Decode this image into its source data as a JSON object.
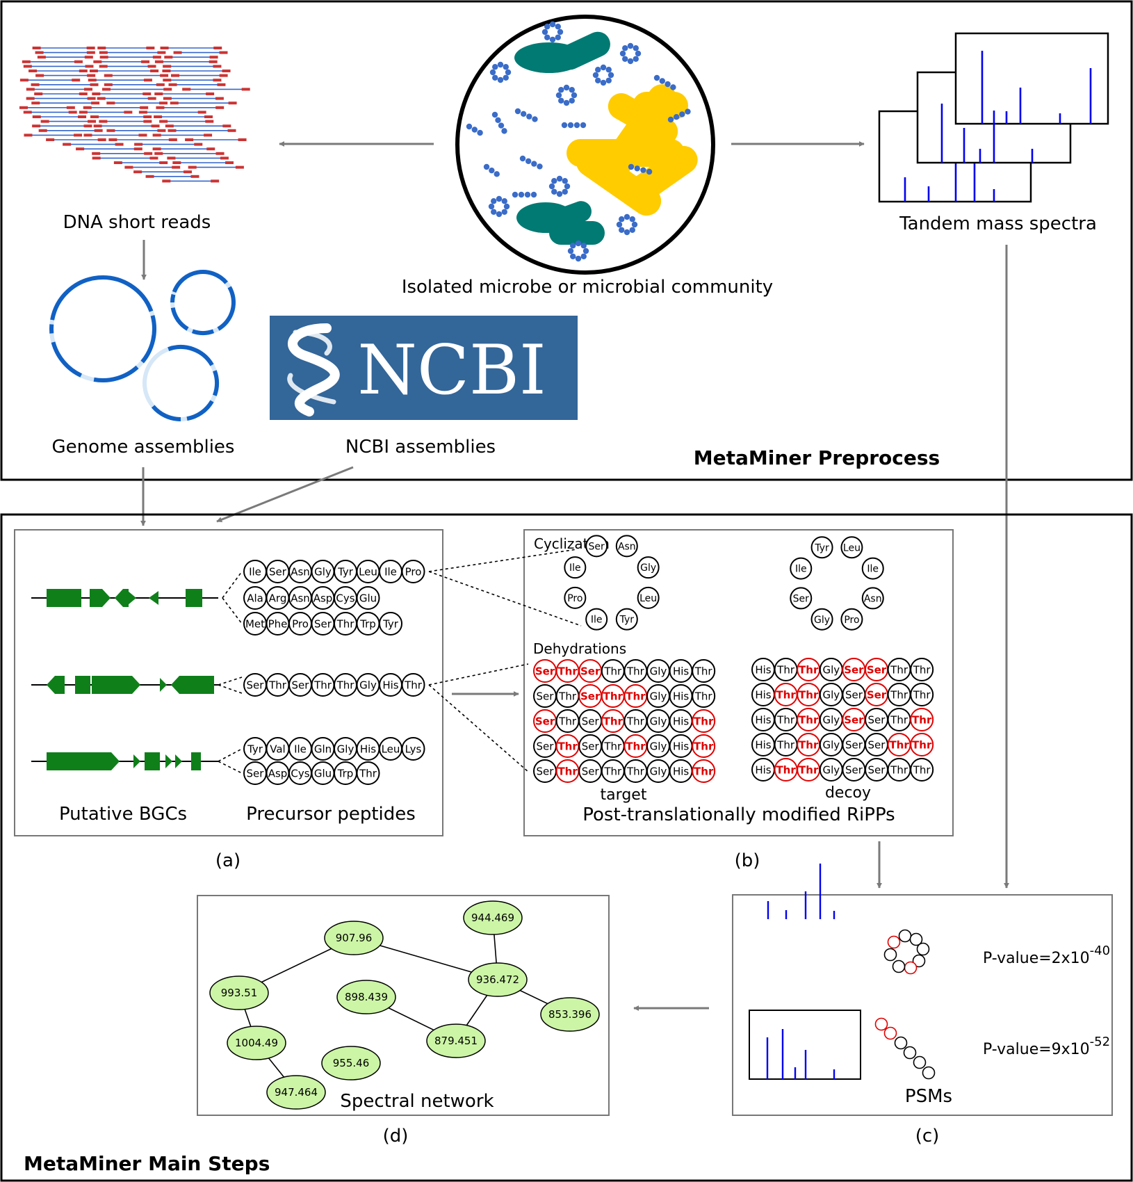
{
  "preprocess": {
    "title": "MetaMiner Preprocess",
    "dna_label": "DNA short reads",
    "microbe_label": "Isolated microbe or microbial community",
    "spectra_label": "Tandem mass spectra",
    "genome_label": "Genome assemblies",
    "ncbi_logo_text": "NCBI",
    "ncbi_label": "NCBI assemblies"
  },
  "main": {
    "title": "MetaMiner Main Steps",
    "panel_a": {
      "letter": "(a)",
      "bgc_label": "Putative BGCs",
      "peptides_label": "Precursor peptides",
      "peptides": [
        [
          [
            "Ile",
            "Ser",
            "Asn",
            "Gly",
            "Tyr",
            "Leu",
            "Ile",
            "Pro"
          ],
          [
            "Ala",
            "Arg",
            "Asn",
            "Asp",
            "Cys",
            "Glu"
          ],
          [
            "Met",
            "Phe",
            "Pro",
            "Ser",
            "Thr",
            "Trp",
            "Tyr"
          ]
        ],
        [
          [
            "Ser",
            "Thr",
            "Ser",
            "Thr",
            "Thr",
            "Gly",
            "His",
            "Thr"
          ]
        ],
        [
          [
            "Tyr",
            "Val",
            "Ile",
            "Gln",
            "Gly",
            "His",
            "Leu",
            "Lys"
          ],
          [
            "Ser",
            "Asp",
            "Cys",
            "Glu",
            "Trp",
            "Thr"
          ]
        ]
      ]
    },
    "panel_b": {
      "letter": "(b)",
      "cyclization_label": "Cyclization",
      "dehydrations_label": "Dehydrations",
      "target_label": "target",
      "decoy_label": "decoy",
      "caption": "Post-translationally modified RiPPs",
      "cyclic_target": [
        "Ser",
        "Asn",
        "Gly",
        "Leu",
        "Tyr",
        "Ile",
        "Pro",
        "Ile"
      ],
      "cyclic_decoy": [
        "Tyr",
        "Leu",
        "Ile",
        "Asn",
        "Pro",
        "Gly",
        "Ser",
        "Ile"
      ],
      "target_rows": [
        [
          [
            "Ser",
            1
          ],
          [
            "Thr",
            1
          ],
          [
            "Ser",
            1
          ],
          [
            "Thr",
            0
          ],
          [
            "Thr",
            0
          ],
          [
            "Gly",
            0
          ],
          [
            "His",
            0
          ],
          [
            "Thr",
            0
          ]
        ],
        [
          [
            "Ser",
            0
          ],
          [
            "Thr",
            0
          ],
          [
            "Ser",
            1
          ],
          [
            "Thr",
            1
          ],
          [
            "Thr",
            1
          ],
          [
            "Gly",
            0
          ],
          [
            "His",
            0
          ],
          [
            "Thr",
            0
          ]
        ],
        [
          [
            "Ser",
            1
          ],
          [
            "Thr",
            0
          ],
          [
            "Ser",
            0
          ],
          [
            "Thr",
            1
          ],
          [
            "Thr",
            0
          ],
          [
            "Gly",
            0
          ],
          [
            "His",
            0
          ],
          [
            "Thr",
            1
          ]
        ],
        [
          [
            "Ser",
            0
          ],
          [
            "Thr",
            1
          ],
          [
            "Ser",
            0
          ],
          [
            "Thr",
            0
          ],
          [
            "Thr",
            1
          ],
          [
            "Gly",
            0
          ],
          [
            "His",
            0
          ],
          [
            "Thr",
            1
          ]
        ],
        [
          [
            "Ser",
            0
          ],
          [
            "Thr",
            1
          ],
          [
            "Ser",
            0
          ],
          [
            "Thr",
            0
          ],
          [
            "Thr",
            0
          ],
          [
            "Gly",
            0
          ],
          [
            "His",
            0
          ],
          [
            "Thr",
            1
          ]
        ]
      ],
      "decoy_rows": [
        [
          [
            "His",
            0
          ],
          [
            "Thr",
            0
          ],
          [
            "Thr",
            1
          ],
          [
            "Gly",
            0
          ],
          [
            "Ser",
            1
          ],
          [
            "Ser",
            1
          ],
          [
            "Thr",
            0
          ],
          [
            "Thr",
            0
          ]
        ],
        [
          [
            "His",
            0
          ],
          [
            "Thr",
            1
          ],
          [
            "Thr",
            1
          ],
          [
            "Gly",
            0
          ],
          [
            "Ser",
            0
          ],
          [
            "Ser",
            1
          ],
          [
            "Thr",
            0
          ],
          [
            "Thr",
            0
          ]
        ],
        [
          [
            "His",
            0
          ],
          [
            "Thr",
            0
          ],
          [
            "Thr",
            1
          ],
          [
            "Gly",
            0
          ],
          [
            "Ser",
            1
          ],
          [
            "Ser",
            0
          ],
          [
            "Thr",
            0
          ],
          [
            "Thr",
            1
          ]
        ],
        [
          [
            "His",
            0
          ],
          [
            "Thr",
            0
          ],
          [
            "Thr",
            1
          ],
          [
            "Gly",
            0
          ],
          [
            "Ser",
            0
          ],
          [
            "Ser",
            0
          ],
          [
            "Thr",
            1
          ],
          [
            "Thr",
            1
          ]
        ],
        [
          [
            "His",
            0
          ],
          [
            "Thr",
            1
          ],
          [
            "Thr",
            1
          ],
          [
            "Gly",
            0
          ],
          [
            "Ser",
            0
          ],
          [
            "Ser",
            0
          ],
          [
            "Thr",
            0
          ],
          [
            "Thr",
            0
          ]
        ]
      ]
    },
    "panel_c": {
      "letter": "(c)",
      "label": "PSMs",
      "pvalues": [
        {
          "prefix": "P-value=2x10",
          "exp": "-40"
        },
        {
          "prefix": "P-value=9x10",
          "exp": "-52"
        }
      ]
    },
    "panel_d": {
      "letter": "(d)",
      "label": "Spectral network",
      "nodes": [
        "907.96",
        "944.469",
        "993.51",
        "936.472",
        "898.439",
        "853.396",
        "1004.49",
        "879.451",
        "955.46",
        "947.464"
      ],
      "edges": [
        [
          0,
          2
        ],
        [
          0,
          3
        ],
        [
          1,
          3
        ],
        [
          3,
          5
        ],
        [
          3,
          7
        ],
        [
          4,
          7
        ],
        [
          2,
          6
        ],
        [
          6,
          9
        ]
      ]
    }
  },
  "colors": {
    "arrow": "#7a7a7a",
    "read_line": "#3366cc",
    "read_end": "#cc3333",
    "teal": "#007a73",
    "yellow": "#ffcc00",
    "coccus": "#3a6cc8",
    "spectrum": "#0000ee",
    "ncbi_bg": "#336699",
    "gene": "#0f7f1a",
    "modified": "#e00000",
    "node_fill": "#ccf5a6",
    "circle_blue": "#1161c4",
    "circle_light": "#d6e7f7"
  }
}
